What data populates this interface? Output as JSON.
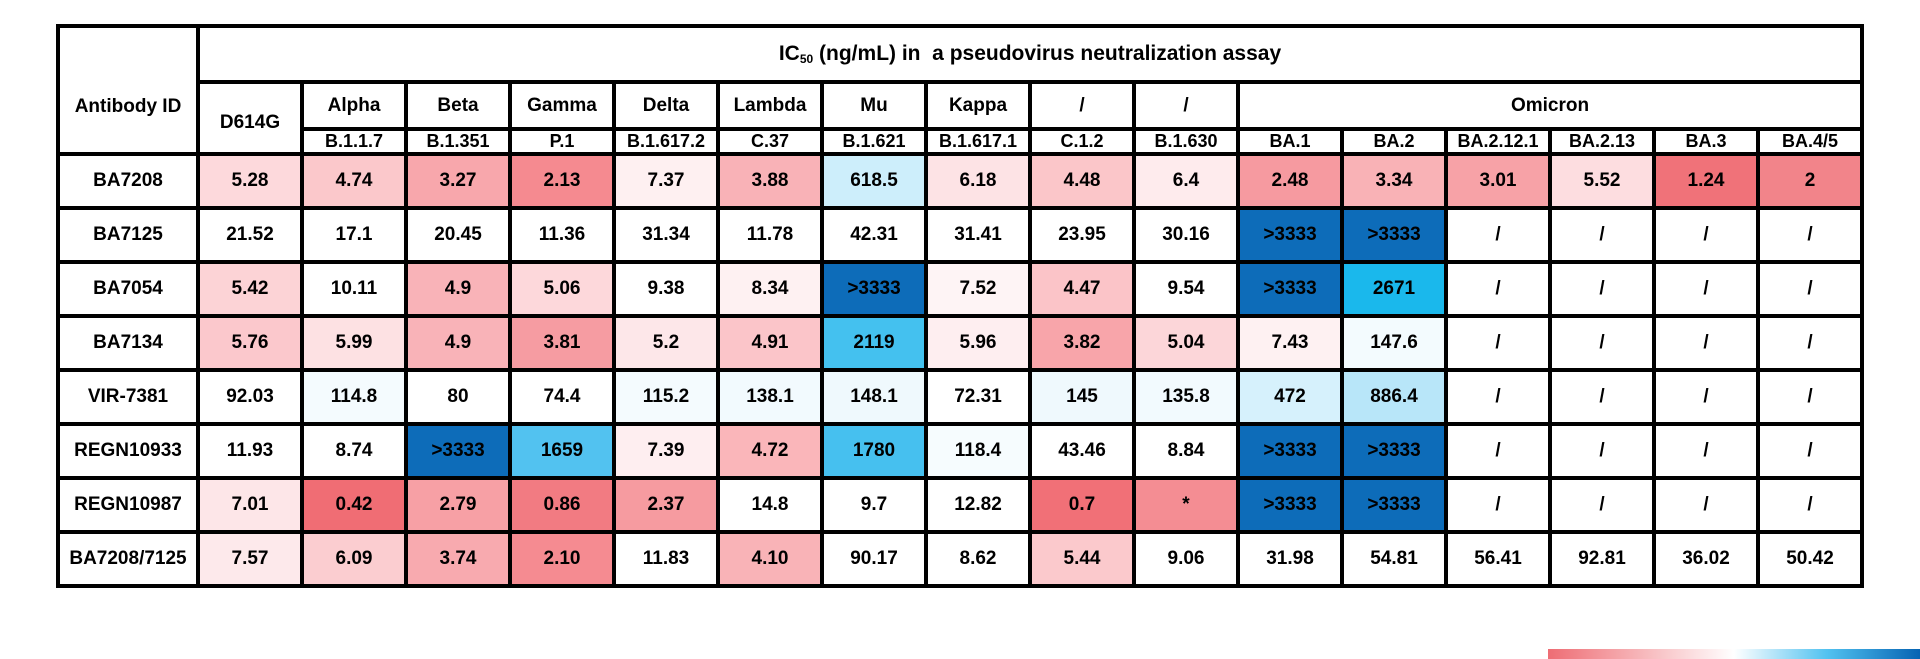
{
  "chart_data": {
    "type": "heatmap",
    "title": "IC50 (ng/mL) in  a pseudovirus neutralization assay",
    "title_parts": {
      "pre": "IC",
      "sub": "50",
      "post": " (ng/mL) in  a pseudovirus neutralization assay"
    },
    "row_header": "Antibody ID",
    "variants": [
      "D614G",
      "Alpha",
      "Beta",
      "Gamma",
      "Delta",
      "Lambda",
      "Mu",
      "Kappa",
      "/",
      "/"
    ],
    "omicron_group": "Omicron",
    "lineages": [
      "B.1.1.7",
      "B.1.351",
      "P.1",
      "B.1.617.2",
      "C.37",
      "B.1.621",
      "B.1.617.1",
      "C.1.2",
      "B.1.630",
      "BA.1",
      "BA.2",
      "BA.2.12.1",
      "BA.2.13",
      "BA.3",
      "BA.4/5"
    ],
    "rows": [
      {
        "antibody": "BA7208",
        "values": [
          "5.28",
          "4.74",
          "3.27",
          "2.13",
          "7.37",
          "3.88",
          "618.5",
          "6.18",
          "4.48",
          "6.4",
          "2.48",
          "3.34",
          "3.01",
          "5.52",
          "1.24",
          "2"
        ]
      },
      {
        "antibody": "BA7125",
        "values": [
          "21.52",
          "17.1",
          "20.45",
          "11.36",
          "31.34",
          "11.78",
          "42.31",
          "31.41",
          "23.95",
          "30.16",
          ">3333",
          ">3333",
          "/",
          "/",
          "/",
          "/"
        ]
      },
      {
        "antibody": "BA7054",
        "values": [
          "5.42",
          "10.11",
          "4.9",
          "5.06",
          "9.38",
          "8.34",
          ">3333",
          "7.52",
          "4.47",
          "9.54",
          ">3333",
          "2671",
          "/",
          "/",
          "/",
          "/"
        ]
      },
      {
        "antibody": "BA7134",
        "values": [
          "5.76",
          "5.99",
          "4.9",
          "3.81",
          "5.2",
          "4.91",
          "2119",
          "5.96",
          "3.82",
          "5.04",
          "7.43",
          "147.6",
          "/",
          "/",
          "/",
          "/"
        ]
      },
      {
        "antibody": "VIR-7381",
        "values": [
          "92.03",
          "114.8",
          "80",
          "74.4",
          "115.2",
          "138.1",
          "148.1",
          "72.31",
          "145",
          "135.8",
          "472",
          "886.4",
          "/",
          "/",
          "/",
          "/"
        ]
      },
      {
        "antibody": "REGN10933",
        "values": [
          "11.93",
          "8.74",
          ">3333",
          "1659",
          "7.39",
          "4.72",
          "1780",
          "118.4",
          "43.46",
          "8.84",
          ">3333",
          ">3333",
          "/",
          "/",
          "/",
          "/"
        ]
      },
      {
        "antibody": "REGN10987",
        "values": [
          "7.01",
          "0.42",
          "2.79",
          "0.86",
          "2.37",
          "14.8",
          "9.7",
          "12.82",
          "0.7",
          "*",
          ">3333",
          ">3333",
          "/",
          "/",
          "/",
          "/"
        ]
      },
      {
        "antibody": "BA7208/7125",
        "values": [
          "7.57",
          "6.09",
          "3.74",
          "2.10",
          "11.83",
          "4.10",
          "90.17",
          "8.62",
          "5.44",
          "9.06",
          "31.98",
          "54.81",
          "56.41",
          "92.81",
          "36.02",
          "50.42"
        ]
      }
    ],
    "cell_colors": [
      [
        "#fdd9dc",
        "#fbc8cb",
        "#f8a7ac",
        "#f58a90",
        "#fef0f1",
        "#f9b2b7",
        "#cdeefb",
        "#fde3e5",
        "#fbc6c9",
        "#feebed",
        "#f69aa0",
        "#f9b2b6",
        "#f7a2a7",
        "#fddde0",
        "#f07279",
        "#f2848a"
      ],
      [
        "#ffffff",
        "#ffffff",
        "#ffffff",
        "#ffffff",
        "#ffffff",
        "#ffffff",
        "#ffffff",
        "#ffffff",
        "#ffffff",
        "#ffffff",
        "#0d6cb9",
        "#0d6cb9",
        "#ffffff",
        "#ffffff",
        "#ffffff",
        "#ffffff"
      ],
      [
        "#fcd3d6",
        "#ffffff",
        "#f9b3b8",
        "#fdd8db",
        "#ffffff",
        "#fef1f2",
        "#0d6cb9",
        "#fef4f5",
        "#fbc4c8",
        "#ffffff",
        "#0d6cb9",
        "#1ab8ec",
        "#ffffff",
        "#ffffff",
        "#ffffff",
        "#ffffff"
      ],
      [
        "#fbc8cc",
        "#fde1e3",
        "#f9b3b8",
        "#f69ca2",
        "#fde7e9",
        "#fbc5c9",
        "#44c1ef",
        "#feeef0",
        "#f8a5aa",
        "#fcd6d9",
        "#fef1f2",
        "#f3fbfe",
        "#ffffff",
        "#ffffff",
        "#ffffff",
        "#ffffff"
      ],
      [
        "#ffffff",
        "#f4fbfe",
        "#ffffff",
        "#ffffff",
        "#f4fbfe",
        "#f2fafe",
        "#eff9fd",
        "#ffffff",
        "#eff9fd",
        "#f2fafe",
        "#d6f1fc",
        "#b8e6f9",
        "#ffffff",
        "#ffffff",
        "#ffffff",
        "#ffffff"
      ],
      [
        "#ffffff",
        "#ffffff",
        "#0d6cb9",
        "#52c2f0",
        "#feeef0",
        "#fab6ba",
        "#46c0ef",
        "#f6fcfe",
        "#ffffff",
        "#ffffff",
        "#0d6cb9",
        "#0d6cb9",
        "#ffffff",
        "#ffffff",
        "#ffffff",
        "#ffffff"
      ],
      [
        "#fde6e8",
        "#f06d74",
        "#f7a0a5",
        "#f27b82",
        "#f69ba0",
        "#ffffff",
        "#ffffff",
        "#ffffff",
        "#f17077",
        "#f48d93",
        "#0d6cb9",
        "#0d6cb9",
        "#ffffff",
        "#ffffff",
        "#ffffff",
        "#ffffff"
      ],
      [
        "#fde9eb",
        "#fbcdd0",
        "#f8aaaf",
        "#f58b91",
        "#ffffff",
        "#f9b3b7",
        "#ffffff",
        "#ffffff",
        "#fbc9cc",
        "#ffffff",
        "#ffffff",
        "#ffffff",
        "#ffffff",
        "#ffffff",
        "#ffffff",
        "#ffffff"
      ]
    ],
    "legend": {
      "type": "color-scale",
      "placement": "bottom-right",
      "colors": [
        "#ee6d74",
        "#ffffff",
        "#52c2f0",
        "#0663b3"
      ]
    }
  }
}
